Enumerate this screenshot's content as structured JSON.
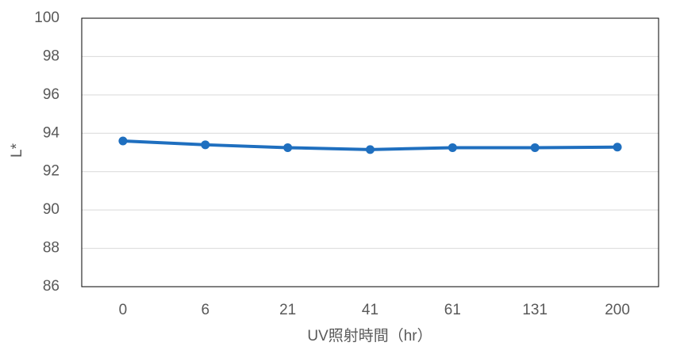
{
  "chart_data": {
    "type": "line",
    "xlabel": "UV照射時間（hr）",
    "ylabel": "L*",
    "categories": [
      "0",
      "6",
      "21",
      "41",
      "61",
      "131",
      "200"
    ],
    "series": [
      {
        "name": "L*",
        "color": "#1f6fbf",
        "values": [
          93.6,
          93.4,
          93.25,
          93.15,
          93.25,
          93.25,
          93.28
        ]
      }
    ],
    "ylim": [
      86,
      100
    ],
    "yticks": [
      86,
      88,
      90,
      92,
      94,
      96,
      98,
      100
    ],
    "grid": true
  }
}
